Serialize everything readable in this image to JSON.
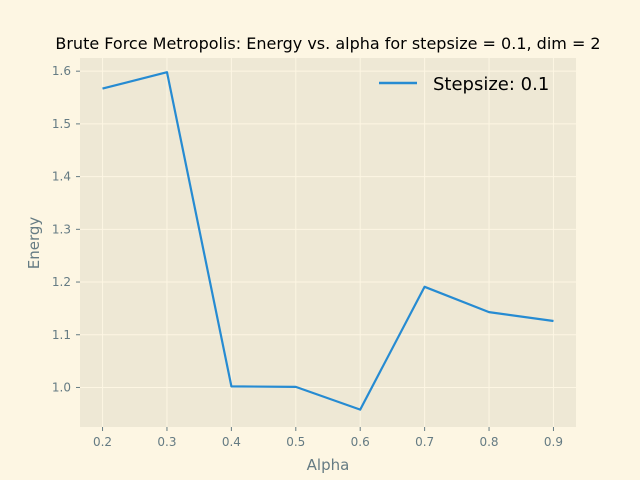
{
  "chart_data": {
    "type": "line",
    "title": "Brute Force Metropolis: Energy vs. alpha for stepsize = 0.1, dim = 2",
    "xlabel": "Alpha",
    "ylabel": "Energy",
    "xlim": [
      0.165,
      0.935
    ],
    "ylim": [
      0.925,
      1.625
    ],
    "xticks": [
      0.2,
      0.3,
      0.4,
      0.5,
      0.6,
      0.7,
      0.8,
      0.9
    ],
    "xtick_labels": [
      "0.2",
      "0.3",
      "0.4",
      "0.5",
      "0.6",
      "0.7",
      "0.8",
      "0.9"
    ],
    "yticks": [
      1.0,
      1.1,
      1.2,
      1.3,
      1.4,
      1.5,
      1.6
    ],
    "ytick_labels": [
      "1.0",
      "1.1",
      "1.2",
      "1.3",
      "1.4",
      "1.5",
      "1.6"
    ],
    "grid": true,
    "legend_position": "top-right",
    "series": [
      {
        "name": "Stepsize: 0.1",
        "color": "#268bd2",
        "x": [
          0.2,
          0.3,
          0.4,
          0.5,
          0.6,
          0.7,
          0.8,
          0.9
        ],
        "y": [
          1.567,
          1.598,
          1.002,
          1.001,
          0.958,
          1.191,
          1.143,
          1.126
        ]
      }
    ]
  },
  "colors": {
    "figure_background": "#fdf6e3",
    "plot_background": "#eee8d5",
    "grid": "#fdf6e3",
    "text": "#657b83"
  }
}
